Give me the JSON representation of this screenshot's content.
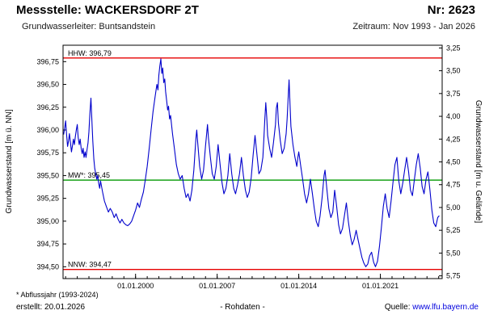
{
  "header": {
    "station_label": "Messstelle: WACKERSDORF 2T",
    "number_label": "Nr: 2623",
    "aquifer_label": "Grundwasserleiter: Buntsandstein",
    "period_label": "Zeitraum: Nov 1993 - Jan 2026"
  },
  "footer": {
    "footnote": "* Abflussjahr (1993-2024)",
    "created": "erstellt:  20.01.2026",
    "data_type": "- Rohdaten -",
    "source_prefix": "Quelle:",
    "source_link": "www.lfu.bayern.de"
  },
  "chart_data": {
    "type": "line",
    "title": "Grundwasserstand Messstelle Wackersdorf 2T, Rohdaten Nov 1993 - Jan 2026",
    "ylabel_left": "Grundwasserstand [m ü. NN]",
    "ylabel_right": "Grundwasserstand [m u. Gelände]",
    "x_range": [
      1993.78,
      2026.3
    ],
    "y_left_range": {
      "min": 394.37,
      "max": 396.93
    },
    "ground_elevation_ref": 400.15,
    "grid": false,
    "legend": "none",
    "x_ticks": [
      {
        "v": 2000,
        "label": "01.01.2000"
      },
      {
        "v": 2007,
        "label": "01.01.2007"
      },
      {
        "v": 2014,
        "label": "01.01.2014"
      },
      {
        "v": 2021,
        "label": "01.01.2021"
      }
    ],
    "y_left_ticks": [
      {
        "v": 396.75,
        "label": "396,75"
      },
      {
        "v": 396.5,
        "label": "396,50"
      },
      {
        "v": 396.25,
        "label": "396,25"
      },
      {
        "v": 396.0,
        "label": "396,00"
      },
      {
        "v": 395.75,
        "label": "395,75"
      },
      {
        "v": 395.5,
        "label": "395,50"
      },
      {
        "v": 395.25,
        "label": "395,25"
      },
      {
        "v": 395.0,
        "label": "395,00"
      },
      {
        "v": 394.75,
        "label": "394,75"
      },
      {
        "v": 394.5,
        "label": "394,50"
      }
    ],
    "y_right_ticks": [
      {
        "v": 3.25,
        "label": "3,25"
      },
      {
        "v": 3.5,
        "label": "3,50"
      },
      {
        "v": 3.75,
        "label": "3,75"
      },
      {
        "v": 4.0,
        "label": "4,00"
      },
      {
        "v": 4.25,
        "label": "4,25"
      },
      {
        "v": 4.5,
        "label": "4,50"
      },
      {
        "v": 4.75,
        "label": "4,75"
      },
      {
        "v": 5.0,
        "label": "5,00"
      },
      {
        "v": 5.25,
        "label": "5,25"
      },
      {
        "v": 5.5,
        "label": "5,50"
      },
      {
        "v": 5.75,
        "label": "5,75"
      }
    ],
    "reference_lines": [
      {
        "name": "HHW",
        "label": "HHW: 396,79",
        "value": 396.79,
        "color": "#e60000"
      },
      {
        "name": "MW",
        "label": "MW*: 395,45",
        "value": 395.45,
        "color": "#009900"
      },
      {
        "name": "NNW",
        "label": "NNW: 394,47",
        "value": 394.47,
        "color": "#e60000"
      }
    ],
    "series": [
      {
        "name": "Grundwasserstand (Rohdaten)",
        "color": "#0000cc",
        "points": [
          [
            1993.83,
            395.95
          ],
          [
            1993.92,
            396.02
          ],
          [
            1994.0,
            396.1
          ],
          [
            1994.08,
            395.96
          ],
          [
            1994.17,
            395.82
          ],
          [
            1994.25,
            395.88
          ],
          [
            1994.33,
            395.96
          ],
          [
            1994.42,
            395.86
          ],
          [
            1994.5,
            395.76
          ],
          [
            1994.58,
            395.82
          ],
          [
            1994.67,
            395.9
          ],
          [
            1994.75,
            395.84
          ],
          [
            1994.83,
            395.92
          ],
          [
            1994.92,
            396.0
          ],
          [
            1995.0,
            396.06
          ],
          [
            1995.08,
            395.92
          ],
          [
            1995.17,
            395.84
          ],
          [
            1995.25,
            395.9
          ],
          [
            1995.33,
            395.8
          ],
          [
            1995.42,
            395.74
          ],
          [
            1995.5,
            395.8
          ],
          [
            1995.58,
            395.7
          ],
          [
            1995.67,
            395.76
          ],
          [
            1995.75,
            395.7
          ],
          [
            1995.83,
            395.78
          ],
          [
            1995.92,
            395.86
          ],
          [
            1996.0,
            395.98
          ],
          [
            1996.08,
            396.18
          ],
          [
            1996.17,
            396.35
          ],
          [
            1996.25,
            396.12
          ],
          [
            1996.33,
            395.88
          ],
          [
            1996.42,
            395.68
          ],
          [
            1996.5,
            395.58
          ],
          [
            1996.58,
            395.52
          ],
          [
            1996.67,
            395.46
          ],
          [
            1996.75,
            395.5
          ],
          [
            1996.83,
            395.42
          ],
          [
            1996.92,
            395.36
          ],
          [
            1997.0,
            395.44
          ],
          [
            1997.17,
            395.32
          ],
          [
            1997.33,
            395.22
          ],
          [
            1997.5,
            395.16
          ],
          [
            1997.67,
            395.1
          ],
          [
            1997.83,
            395.14
          ],
          [
            1998.0,
            395.1
          ],
          [
            1998.17,
            395.04
          ],
          [
            1998.33,
            395.08
          ],
          [
            1998.5,
            395.02
          ],
          [
            1998.67,
            394.98
          ],
          [
            1998.83,
            395.02
          ],
          [
            1999.0,
            394.98
          ],
          [
            1999.17,
            394.96
          ],
          [
            1999.33,
            394.95
          ],
          [
            1999.5,
            394.97
          ],
          [
            1999.67,
            395.0
          ],
          [
            1999.83,
            395.06
          ],
          [
            2000.0,
            395.12
          ],
          [
            2000.17,
            395.2
          ],
          [
            2000.33,
            395.15
          ],
          [
            2000.5,
            395.24
          ],
          [
            2000.67,
            395.32
          ],
          [
            2000.83,
            395.45
          ],
          [
            2001.0,
            395.6
          ],
          [
            2001.17,
            395.8
          ],
          [
            2001.33,
            396.0
          ],
          [
            2001.5,
            396.2
          ],
          [
            2001.67,
            396.36
          ],
          [
            2001.83,
            396.5
          ],
          [
            2001.92,
            396.44
          ],
          [
            2002.0,
            396.6
          ],
          [
            2002.08,
            396.7
          ],
          [
            2002.17,
            396.78
          ],
          [
            2002.25,
            396.62
          ],
          [
            2002.33,
            396.68
          ],
          [
            2002.42,
            396.52
          ],
          [
            2002.5,
            396.56
          ],
          [
            2002.58,
            396.42
          ],
          [
            2002.67,
            396.32
          ],
          [
            2002.75,
            396.22
          ],
          [
            2002.83,
            396.26
          ],
          [
            2002.92,
            396.12
          ],
          [
            2003.0,
            396.16
          ],
          [
            2003.17,
            395.96
          ],
          [
            2003.33,
            395.8
          ],
          [
            2003.5,
            395.62
          ],
          [
            2003.67,
            395.52
          ],
          [
            2003.83,
            395.46
          ],
          [
            2004.0,
            395.5
          ],
          [
            2004.17,
            395.36
          ],
          [
            2004.33,
            395.26
          ],
          [
            2004.5,
            395.3
          ],
          [
            2004.67,
            395.22
          ],
          [
            2004.83,
            395.34
          ],
          [
            2005.0,
            395.56
          ],
          [
            2005.17,
            395.9
          ],
          [
            2005.25,
            396.0
          ],
          [
            2005.33,
            395.86
          ],
          [
            2005.5,
            395.6
          ],
          [
            2005.67,
            395.46
          ],
          [
            2005.83,
            395.56
          ],
          [
            2006.0,
            395.82
          ],
          [
            2006.17,
            396.06
          ],
          [
            2006.25,
            395.92
          ],
          [
            2006.42,
            395.7
          ],
          [
            2006.58,
            395.52
          ],
          [
            2006.75,
            395.46
          ],
          [
            2006.92,
            395.6
          ],
          [
            2007.08,
            395.84
          ],
          [
            2007.25,
            395.62
          ],
          [
            2007.42,
            395.42
          ],
          [
            2007.58,
            395.3
          ],
          [
            2007.75,
            395.36
          ],
          [
            2007.92,
            395.5
          ],
          [
            2008.08,
            395.74
          ],
          [
            2008.25,
            395.52
          ],
          [
            2008.42,
            395.36
          ],
          [
            2008.58,
            395.3
          ],
          [
            2008.75,
            395.4
          ],
          [
            2008.92,
            395.52
          ],
          [
            2009.08,
            395.7
          ],
          [
            2009.25,
            395.5
          ],
          [
            2009.42,
            395.34
          ],
          [
            2009.58,
            395.26
          ],
          [
            2009.75,
            395.32
          ],
          [
            2009.92,
            395.48
          ],
          [
            2010.08,
            395.72
          ],
          [
            2010.25,
            395.94
          ],
          [
            2010.42,
            395.72
          ],
          [
            2010.58,
            395.52
          ],
          [
            2010.75,
            395.56
          ],
          [
            2010.92,
            395.7
          ],
          [
            2011.0,
            395.88
          ],
          [
            2011.08,
            396.1
          ],
          [
            2011.17,
            396.3
          ],
          [
            2011.25,
            396.14
          ],
          [
            2011.33,
            395.94
          ],
          [
            2011.5,
            395.8
          ],
          [
            2011.67,
            395.7
          ],
          [
            2011.83,
            395.86
          ],
          [
            2012.0,
            396.06
          ],
          [
            2012.08,
            396.24
          ],
          [
            2012.17,
            396.3
          ],
          [
            2012.25,
            396.08
          ],
          [
            2012.42,
            395.88
          ],
          [
            2012.58,
            395.74
          ],
          [
            2012.75,
            395.8
          ],
          [
            2012.92,
            395.96
          ],
          [
            2013.0,
            396.12
          ],
          [
            2013.08,
            396.32
          ],
          [
            2013.17,
            396.55
          ],
          [
            2013.25,
            396.28
          ],
          [
            2013.33,
            396.04
          ],
          [
            2013.5,
            395.84
          ],
          [
            2013.67,
            395.7
          ],
          [
            2013.83,
            395.6
          ],
          [
            2013.92,
            395.7
          ],
          [
            2014.0,
            395.76
          ],
          [
            2014.17,
            395.6
          ],
          [
            2014.33,
            395.46
          ],
          [
            2014.5,
            395.3
          ],
          [
            2014.67,
            395.2
          ],
          [
            2014.83,
            395.3
          ],
          [
            2015.0,
            395.46
          ],
          [
            2015.17,
            395.3
          ],
          [
            2015.33,
            395.14
          ],
          [
            2015.5,
            395.0
          ],
          [
            2015.67,
            394.94
          ],
          [
            2015.83,
            395.06
          ],
          [
            2016.0,
            395.26
          ],
          [
            2016.17,
            395.5
          ],
          [
            2016.25,
            395.56
          ],
          [
            2016.42,
            395.34
          ],
          [
            2016.58,
            395.14
          ],
          [
            2016.75,
            395.04
          ],
          [
            2016.92,
            395.1
          ],
          [
            2017.08,
            395.34
          ],
          [
            2017.25,
            395.16
          ],
          [
            2017.42,
            394.96
          ],
          [
            2017.58,
            394.86
          ],
          [
            2017.75,
            394.92
          ],
          [
            2017.92,
            395.06
          ],
          [
            2018.08,
            395.2
          ],
          [
            2018.25,
            395.0
          ],
          [
            2018.42,
            394.84
          ],
          [
            2018.58,
            394.74
          ],
          [
            2018.75,
            394.8
          ],
          [
            2018.92,
            394.9
          ],
          [
            2019.08,
            394.8
          ],
          [
            2019.25,
            394.7
          ],
          [
            2019.42,
            394.6
          ],
          [
            2019.58,
            394.54
          ],
          [
            2019.75,
            394.5
          ],
          [
            2019.92,
            394.53
          ],
          [
            2020.08,
            394.62
          ],
          [
            2020.25,
            394.66
          ],
          [
            2020.42,
            394.55
          ],
          [
            2020.58,
            394.5
          ],
          [
            2020.75,
            394.56
          ],
          [
            2020.92,
            394.72
          ],
          [
            2021.08,
            394.92
          ],
          [
            2021.25,
            395.16
          ],
          [
            2021.42,
            395.3
          ],
          [
            2021.58,
            395.14
          ],
          [
            2021.75,
            395.04
          ],
          [
            2021.92,
            395.22
          ],
          [
            2022.08,
            395.42
          ],
          [
            2022.25,
            395.62
          ],
          [
            2022.42,
            395.7
          ],
          [
            2022.58,
            395.44
          ],
          [
            2022.75,
            395.3
          ],
          [
            2022.92,
            395.42
          ],
          [
            2023.08,
            395.56
          ],
          [
            2023.25,
            395.7
          ],
          [
            2023.42,
            395.54
          ],
          [
            2023.58,
            395.34
          ],
          [
            2023.75,
            395.28
          ],
          [
            2023.92,
            395.46
          ],
          [
            2024.08,
            395.62
          ],
          [
            2024.25,
            395.74
          ],
          [
            2024.42,
            395.58
          ],
          [
            2024.58,
            395.38
          ],
          [
            2024.75,
            395.3
          ],
          [
            2024.92,
            395.46
          ],
          [
            2025.08,
            395.54
          ],
          [
            2025.25,
            395.34
          ],
          [
            2025.42,
            395.12
          ],
          [
            2025.58,
            394.98
          ],
          [
            2025.75,
            394.94
          ],
          [
            2025.92,
            395.04
          ],
          [
            2026.05,
            395.06
          ]
        ]
      }
    ]
  }
}
